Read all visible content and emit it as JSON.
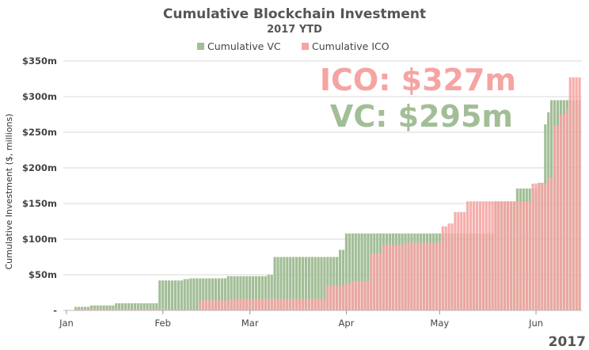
{
  "chart_data": {
    "type": "bar",
    "title": "Cumulative Blockchain Investment",
    "subtitle": "2017 YTD",
    "ylabel": "Cumulative Investment ($, millions)",
    "xlabel": "",
    "year_label": "2017",
    "ylim": [
      0,
      350
    ],
    "y_ticks": [
      {
        "value": 0,
        "label": "-"
      },
      {
        "value": 50,
        "label": "$50m"
      },
      {
        "value": 100,
        "label": "$100m"
      },
      {
        "value": 150,
        "label": "$150m"
      },
      {
        "value": 200,
        "label": "$200m"
      },
      {
        "value": 250,
        "label": "$250m"
      },
      {
        "value": 300,
        "label": "$300m"
      },
      {
        "value": 350,
        "label": "$350m"
      }
    ],
    "x_ticks": [
      {
        "day": 1,
        "label": "Jan"
      },
      {
        "day": 32,
        "label": "Feb"
      },
      {
        "day": 60,
        "label": "Mar"
      },
      {
        "day": 91,
        "label": "Apr"
      },
      {
        "day": 121,
        "label": "May"
      },
      {
        "day": 152,
        "label": "Jun"
      }
    ],
    "legend": [
      {
        "name": "Cumulative VC",
        "color": "#a2be96"
      },
      {
        "name": "Cumulative ICO",
        "color": "#f5a4a2"
      }
    ],
    "annotations": {
      "ico": "ICO: $327m",
      "vc": "VC: $295m"
    },
    "grid": true,
    "legend_position": "top-center",
    "series": [
      {
        "name": "Cumulative VC",
        "color": "#a2be96",
        "steps": [
          [
            1,
            0
          ],
          [
            4,
            5
          ],
          [
            9,
            7
          ],
          [
            17,
            10
          ],
          [
            31,
            42
          ],
          [
            39,
            44
          ],
          [
            41,
            45
          ],
          [
            53,
            48
          ],
          [
            66,
            50
          ],
          [
            68,
            75
          ],
          [
            89,
            85
          ],
          [
            91,
            108
          ],
          [
            110,
            108
          ],
          [
            139,
            153
          ],
          [
            146,
            171
          ],
          [
            153,
            179
          ],
          [
            155,
            261
          ],
          [
            156,
            278
          ],
          [
            157,
            295
          ]
        ]
      },
      {
        "name": "Cumulative ICO",
        "color": "#f5a4a2",
        "steps": [
          [
            1,
            0
          ],
          [
            4,
            2
          ],
          [
            35,
            1
          ],
          [
            44,
            14
          ],
          [
            54,
            16
          ],
          [
            72,
            16
          ],
          [
            85,
            35
          ],
          [
            90,
            35
          ],
          [
            91,
            38
          ],
          [
            93,
            41
          ],
          [
            99,
            80
          ],
          [
            103,
            92
          ],
          [
            110,
            95
          ],
          [
            112,
            95
          ],
          [
            122,
            118
          ],
          [
            124,
            122
          ],
          [
            126,
            138
          ],
          [
            130,
            153
          ],
          [
            138,
            153
          ],
          [
            151,
            178
          ],
          [
            156,
            186
          ],
          [
            158,
            260
          ],
          [
            160,
            275
          ],
          [
            162,
            282
          ],
          [
            163,
            293
          ],
          [
            163,
            300
          ],
          [
            163,
            327
          ]
        ]
      }
    ],
    "last_day": 166
  }
}
